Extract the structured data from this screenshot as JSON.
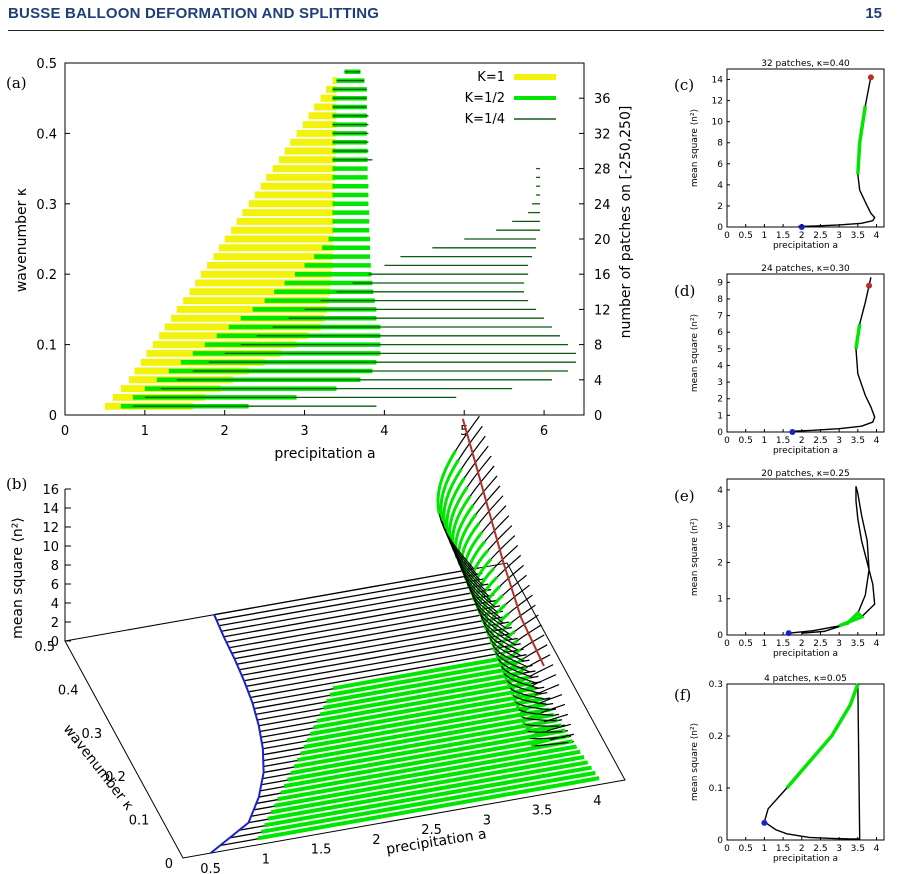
{
  "header": {
    "title": "BUSSE BALLOON DEFORMATION AND SPLITTING",
    "page": "15"
  },
  "colors": {
    "yellow": "#f2f20a",
    "green": "#00e600",
    "darkgreen": "#0b5e10",
    "blue": "#1a22cc",
    "red": "#b3302a"
  },
  "panel_labels": {
    "a": "(a)",
    "b": "(b)",
    "c": "(c)",
    "d": "(d)",
    "e": "(e)",
    "f": "(f)"
  },
  "panel_a": {
    "xlabel": "precipitation a",
    "ylabel": "wavenumber κ",
    "y2label": "number of patches on [-250,250]",
    "xticks": [
      "0",
      "1",
      "2",
      "3",
      "4",
      "5",
      "6"
    ],
    "yticks": [
      "0",
      "0.1",
      "0.2",
      "0.3",
      "0.4",
      "0.5"
    ],
    "y2ticks": [
      "0",
      "4",
      "8",
      "12",
      "16",
      "20",
      "24",
      "28",
      "32",
      "36"
    ],
    "legend": [
      "K=1",
      "K=1/2",
      "K=1/4"
    ]
  },
  "panel_b": {
    "zlabel": "mean square ⟨n²⟩",
    "ylabel": "wavenumber κ",
    "xlabel": "precipitation a",
    "zticks": [
      "0",
      "2",
      "4",
      "6",
      "8",
      "10",
      "12",
      "14",
      "16"
    ],
    "yticks": [
      "0",
      "0.1",
      "0.2",
      "0.3",
      "0.4",
      "0.5"
    ],
    "xticks": [
      "0.5",
      "1",
      "1.5",
      "2",
      "2.5",
      "3",
      "3.5",
      "4"
    ]
  },
  "small_panels": {
    "c": {
      "title": "32 patches, κ=0.40",
      "ylabel": "mean square ⟨n²⟩",
      "xlabel": "precipitation a",
      "xticks": [
        "0",
        "0.5",
        "1",
        "1.5",
        "2",
        "2.5",
        "3",
        "3.5",
        "4"
      ],
      "yticks": [
        "0",
        "2",
        "4",
        "6",
        "8",
        "10",
        "12",
        "14"
      ]
    },
    "d": {
      "title": "24 patches, κ=0.30",
      "ylabel": "mean square ⟨n²⟩",
      "xlabel": "precipitation a",
      "xticks": [
        "0",
        "0.5",
        "1",
        "1.5",
        "2",
        "2.5",
        "3",
        "3.5",
        "4"
      ],
      "yticks": [
        "0",
        "1",
        "2",
        "3",
        "4",
        "5",
        "6",
        "7",
        "8",
        "9"
      ]
    },
    "e": {
      "title": "20 patches, κ=0.25",
      "ylabel": "mean square ⟨n²⟩",
      "xlabel": "precipitation a",
      "xticks": [
        "0",
        "0.5",
        "1",
        "1.5",
        "2",
        "2.5",
        "3",
        "3.5",
        "4"
      ],
      "yticks": [
        "0",
        "1",
        "2",
        "3",
        "4"
      ]
    },
    "f": {
      "title": "4 patches, κ=0.05",
      "ylabel": "mean square ⟨n²⟩",
      "xlabel": "precipitation a",
      "xticks": [
        "0",
        "0.5",
        "1",
        "1.5",
        "2",
        "2.5",
        "3",
        "3.5",
        "4"
      ],
      "yticks": [
        "0",
        "0.1",
        "0.2",
        "0.3"
      ]
    }
  },
  "chart_data": [
    {
      "type": "bar",
      "orientation": "horizontal-ranges",
      "xlabel": "precipitation a",
      "ylabel": "wavenumber κ",
      "y2label": "number of patches on [-250,250]",
      "xlim": [
        0,
        6.5
      ],
      "ylim": [
        0,
        0.5
      ],
      "y2lim": [
        0,
        40
      ],
      "series": [
        {
          "name": "K=1",
          "kappa": [
            0.0125,
            0.025,
            0.0375,
            0.05,
            0.0625,
            0.075,
            0.0875,
            0.1,
            0.1125,
            0.125,
            0.1375,
            0.15,
            0.1625,
            0.175,
            0.1875,
            0.2,
            0.2125,
            0.225,
            0.2375,
            0.25,
            0.2625,
            0.275,
            0.2875,
            0.3,
            0.3125,
            0.325,
            0.3375,
            0.35,
            0.3625,
            0.375,
            0.3875,
            0.4,
            0.4125,
            0.425,
            0.4375,
            0.45,
            0.4625,
            0.475
          ],
          "a_min": [
            0.5,
            0.6,
            0.7,
            0.8,
            0.87,
            0.95,
            1.02,
            1.1,
            1.18,
            1.25,
            1.33,
            1.4,
            1.48,
            1.56,
            1.63,
            1.7,
            1.78,
            1.86,
            1.93,
            2.0,
            2.08,
            2.15,
            2.22,
            2.3,
            2.38,
            2.45,
            2.52,
            2.6,
            2.68,
            2.75,
            2.82,
            2.9,
            2.98,
            3.05,
            3.12,
            3.2,
            3.27,
            3.35
          ],
          "a_max": [
            1.6,
            1.75,
            1.95,
            2.1,
            2.3,
            2.5,
            2.7,
            2.9,
            3.05,
            3.2,
            3.25,
            3.28,
            3.3,
            3.32,
            3.33,
            3.34,
            3.35,
            3.35,
            3.36,
            3.36,
            3.37,
            3.37,
            3.37,
            3.38,
            3.38,
            3.38,
            3.38,
            3.39,
            3.39,
            3.39,
            3.39,
            3.4,
            3.4,
            3.4,
            3.4,
            3.4,
            3.4,
            3.4
          ]
        },
        {
          "name": "K=1/2",
          "kappa": [
            0.0125,
            0.025,
            0.0375,
            0.05,
            0.0625,
            0.075,
            0.0875,
            0.1,
            0.1125,
            0.125,
            0.1375,
            0.15,
            0.1625,
            0.175,
            0.1875,
            0.2,
            0.2125,
            0.225,
            0.2375,
            0.25,
            0.2625,
            0.275,
            0.2875,
            0.3,
            0.3125,
            0.325,
            0.3375,
            0.35,
            0.3625,
            0.375,
            0.3875,
            0.4,
            0.4125,
            0.425,
            0.4375,
            0.45,
            0.4625,
            0.475,
            0.4875
          ],
          "a_min": [
            0.7,
            0.85,
            1.0,
            1.15,
            1.3,
            1.45,
            1.6,
            1.75,
            1.9,
            2.05,
            2.2,
            2.35,
            2.5,
            2.62,
            2.75,
            2.88,
            3.0,
            3.12,
            3.22,
            3.3,
            3.35,
            3.35,
            3.35,
            3.35,
            3.35,
            3.35,
            3.35,
            3.35,
            3.35,
            3.35,
            3.35,
            3.35,
            3.35,
            3.35,
            3.35,
            3.35,
            3.35,
            3.4,
            3.5
          ],
          "a_max": [
            2.3,
            2.9,
            3.4,
            3.7,
            3.85,
            3.9,
            3.95,
            3.95,
            3.95,
            3.95,
            3.9,
            3.9,
            3.88,
            3.86,
            3.85,
            3.84,
            3.83,
            3.82,
            3.82,
            3.82,
            3.81,
            3.81,
            3.81,
            3.8,
            3.8,
            3.8,
            3.79,
            3.79,
            3.79,
            3.79,
            3.78,
            3.78,
            3.78,
            3.78,
            3.78,
            3.78,
            3.78,
            3.75,
            3.7
          ]
        },
        {
          "name": "K=1/4",
          "kappa": [
            0.0125,
            0.025,
            0.0375,
            0.05,
            0.0625,
            0.075,
            0.0875,
            0.1,
            0.1125,
            0.125,
            0.1375,
            0.15,
            0.1625,
            0.175,
            0.1875,
            0.2,
            0.2125,
            0.225,
            0.2375,
            0.25,
            0.2625,
            0.275,
            0.2875,
            0.3,
            0.3125,
            0.325,
            0.3375,
            0.35,
            0.3625,
            0.375,
            0.3875,
            0.4,
            0.4125,
            0.425,
            0.4375,
            0.45,
            0.4625,
            0.475,
            0.4875
          ],
          "a_min": [
            0.85,
            1.0,
            1.2,
            1.4,
            1.6,
            1.8,
            2.0,
            2.2,
            2.4,
            2.6,
            2.8,
            3.0,
            3.2,
            3.4,
            3.6,
            3.8,
            4.0,
            4.2,
            4.6,
            5.0,
            5.4,
            5.6,
            5.8,
            5.85,
            5.9,
            5.9,
            5.9,
            5.9,
            3.35,
            3.35,
            3.35,
            3.35,
            3.35,
            3.35,
            3.35,
            3.35,
            3.35,
            3.4,
            3.5
          ],
          "a_max": [
            3.9,
            4.9,
            5.6,
            6.1,
            6.3,
            6.4,
            6.4,
            6.3,
            6.2,
            6.1,
            6.0,
            5.9,
            5.8,
            5.75,
            5.75,
            5.8,
            5.8,
            5.85,
            5.9,
            5.9,
            5.95,
            5.95,
            5.95,
            5.95,
            5.95,
            5.95,
            5.95,
            5.95,
            3.85,
            3.8,
            3.8,
            3.8,
            3.8,
            3.8,
            3.78,
            3.78,
            3.78,
            3.75,
            3.7
          ]
        }
      ]
    },
    {
      "type": "line",
      "note_kind": "3d-surface",
      "xlabel": "precipitation a",
      "ylabel": "wavenumber κ",
      "zlabel": "mean square ⟨n²⟩",
      "xlim": [
        0.25,
        4.25
      ],
      "ylim": [
        0,
        0.5
      ],
      "zlim": [
        0,
        16
      ],
      "series": [
        {
          "name": "fold left (blue)",
          "kappa": [
            0.0,
            0.05,
            0.1,
            0.15,
            0.2,
            0.25,
            0.3,
            0.35,
            0.4,
            0.45,
            0.5
          ],
          "a": [
            0.5,
            0.95,
            1.15,
            1.3,
            1.4,
            1.47,
            1.52,
            1.55,
            1.57,
            1.58,
            1.6
          ]
        },
        {
          "name": "fold right (red)",
          "kappa": [
            0.25,
            0.3,
            0.35,
            0.4,
            0.45,
            0.5
          ],
          "a": [
            4.05,
            3.95,
            3.9,
            3.88,
            3.86,
            3.85
          ],
          "n2": [
            1.0,
            4.0,
            7.5,
            10.5,
            13.5,
            16.0
          ]
        }
      ]
    },
    {
      "type": "line",
      "title": "32 patches, κ=0.40",
      "xlim": [
        0,
        4.2
      ],
      "ylim": [
        0,
        15
      ],
      "x": [
        1.9,
        2.4,
        3.0,
        3.6,
        3.9,
        3.95,
        3.85,
        3.75,
        3.55,
        3.5,
        3.55,
        3.7,
        3.85
      ],
      "y": [
        0.05,
        0.1,
        0.2,
        0.35,
        0.6,
        0.9,
        1.3,
        2.0,
        3.5,
        5.0,
        8.0,
        11.5,
        14.3
      ],
      "highlight_green_y": [
        5.0,
        13.5
      ],
      "blue_point": [
        2.0,
        0.0
      ],
      "red_point": [
        3.85,
        14.2
      ]
    },
    {
      "type": "line",
      "title": "24 patches, κ=0.30",
      "xlim": [
        0,
        4.2
      ],
      "ylim": [
        0,
        9.5
      ],
      "x": [
        1.75,
        2.3,
        3.0,
        3.6,
        3.9,
        3.95,
        3.85,
        3.7,
        3.5,
        3.45,
        3.55,
        3.7,
        3.85,
        3.8
      ],
      "y": [
        0.05,
        0.1,
        0.2,
        0.35,
        0.6,
        0.9,
        1.5,
        2.2,
        3.5,
        5.0,
        6.5,
        7.8,
        9.3,
        8.8
      ],
      "highlight_green_y": [
        5.0,
        7.5
      ],
      "blue_point": [
        1.75,
        0.0
      ],
      "red_point": [
        3.8,
        8.8
      ]
    },
    {
      "type": "line",
      "title": "20 patches, κ=0.25",
      "xlim": [
        0,
        4.2
      ],
      "ylim": [
        0,
        4.3
      ],
      "x": [
        1.65,
        2.3,
        3.0,
        3.6,
        3.95,
        3.9,
        3.75,
        3.6,
        3.5,
        3.45,
        3.45,
        3.5,
        3.6,
        3.75,
        3.8,
        3.7,
        3.5,
        3.2,
        2.6,
        2.0
      ],
      "y": [
        0.05,
        0.12,
        0.25,
        0.5,
        0.85,
        1.4,
        2.0,
        2.6,
        3.2,
        3.7,
        4.1,
        3.9,
        3.3,
        2.6,
        1.8,
        1.1,
        0.6,
        0.3,
        0.1,
        0.05
      ],
      "highlight_green_y": [
        0.15,
        0.7
      ],
      "blue_point": [
        1.65,
        0.05
      ]
    },
    {
      "type": "line",
      "title": "4 patches, κ=0.05",
      "xlim": [
        0,
        4.2
      ],
      "ylim": [
        0,
        0.3
      ],
      "x": [
        1.0,
        1.3,
        1.6,
        2.2,
        2.8,
        3.3,
        3.55,
        3.5,
        3.3,
        2.8,
        2.2,
        1.6,
        1.1,
        1.0
      ],
      "y": [
        0.035,
        0.02,
        0.012,
        0.005,
        0.003,
        0.002,
        0.002,
        0.3,
        0.26,
        0.2,
        0.15,
        0.1,
        0.06,
        0.035
      ],
      "highlight_green_y": [
        0.09,
        0.3
      ],
      "blue_point": [
        1.0,
        0.033
      ]
    }
  ]
}
